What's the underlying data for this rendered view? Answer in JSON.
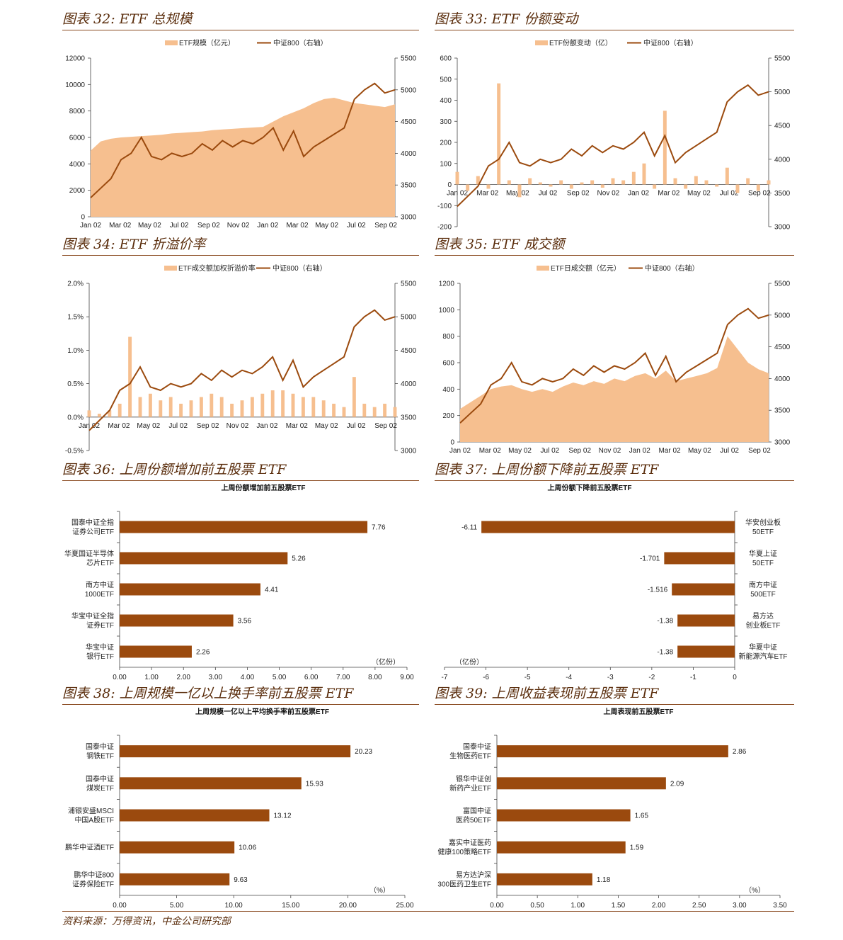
{
  "panels": [
    {
      "title": "图表 32: ETF 总规模"
    },
    {
      "title": "图表 33: ETF 份额变动"
    },
    {
      "title": "图表 34: ETF 折溢价率"
    },
    {
      "title": "图表 35: ETF 成交额"
    },
    {
      "title": "图表 36:  上周份额增加前五股票 ETF"
    },
    {
      "title": "图表 37:  上周份额下降前五股票 ETF"
    },
    {
      "title": "图表 38:  上周规模一亿以上换手率前五股票 ETF"
    },
    {
      "title": "图表 39:  上周收益表现前五股票 ETF"
    }
  ],
  "footer": "资料来源：万得资讯，中金公司研究部",
  "colors": {
    "accent_line": "#9b4a0e",
    "fill": "#f6bf8f",
    "bar": "#9b4a0e",
    "title": "#5a2d0c"
  },
  "chart_data": [
    {
      "type": "area",
      "x_ticks": [
        "Jan 02",
        "Mar 02",
        "May 02",
        "Jul 02",
        "Sep 02",
        "Nov 02",
        "Jan 02",
        "Mar 02",
        "May 02",
        "Jul 02",
        "Sep 02"
      ],
      "series": [
        {
          "name": "ETF规模（亿元）",
          "type": "area",
          "axis": "left",
          "values": [
            5000,
            5700,
            5900,
            6000,
            6050,
            6100,
            6150,
            6200,
            6300,
            6350,
            6400,
            6450,
            6550,
            6600,
            6650,
            6700,
            6750,
            6800,
            7200,
            7600,
            7900,
            8200,
            8600,
            8900,
            9000,
            8800,
            8600,
            8500,
            8400,
            8300,
            8500
          ]
        },
        {
          "name": "中证800（右轴）",
          "type": "line",
          "axis": "right",
          "values": [
            3300,
            3450,
            3600,
            3900,
            4000,
            4250,
            3950,
            3900,
            4000,
            3950,
            4000,
            4150,
            4050,
            4200,
            4100,
            4200,
            4150,
            4250,
            4400,
            4050,
            4350,
            3950,
            4100,
            4200,
            4300,
            4400,
            4850,
            5000,
            5100,
            4950,
            5000
          ]
        }
      ],
      "ylim_left": [
        0,
        12000
      ],
      "ylim_right": [
        3000,
        5500
      ],
      "yticks_left": [
        "0",
        "2000",
        "4000",
        "6000",
        "8000",
        "10000",
        "12000"
      ],
      "yticks_right": [
        "3000",
        "3500",
        "4000",
        "4500",
        "5000",
        "5500"
      ],
      "legend": "top-center"
    },
    {
      "type": "bar",
      "x_ticks": [
        "Jan 02",
        "Mar 02",
        "May 02",
        "Jul 02",
        "Sep 02",
        "Nov 02",
        "Jan 02",
        "Mar 02",
        "May 02",
        "Jul 02",
        "Sep 02"
      ],
      "series": [
        {
          "name": "ETF份额变动（亿）",
          "type": "bar",
          "axis": "left",
          "values": [
            60,
            -30,
            40,
            -20,
            480,
            20,
            -60,
            30,
            10,
            -10,
            20,
            -20,
            10,
            20,
            -15,
            30,
            20,
            60,
            100,
            -20,
            350,
            30,
            -20,
            40,
            20,
            -10,
            80,
            -40,
            30,
            -30,
            20
          ]
        },
        {
          "name": "中证800（右轴）",
          "type": "line",
          "axis": "right",
          "values": [
            3300,
            3450,
            3600,
            3900,
            4000,
            4250,
            3950,
            3900,
            4000,
            3950,
            4000,
            4150,
            4050,
            4200,
            4100,
            4200,
            4150,
            4250,
            4400,
            4050,
            4350,
            3950,
            4100,
            4200,
            4300,
            4400,
            4850,
            5000,
            5100,
            4950,
            5000
          ]
        }
      ],
      "ylim_left": [
        -200,
        600
      ],
      "ylim_right": [
        3000,
        5500
      ],
      "yticks_left": [
        "-200",
        "-100",
        "0",
        "100",
        "200",
        "300",
        "400",
        "500",
        "600"
      ],
      "yticks_right": [
        "3000",
        "3500",
        "4000",
        "4500",
        "5000",
        "5500"
      ],
      "legend": "top-center"
    },
    {
      "type": "bar",
      "x_ticks": [
        "Jan 02",
        "Mar 02",
        "May 02",
        "Jul 02",
        "Sep 02",
        "Nov 02",
        "Jan 02",
        "Mar 02",
        "May 02",
        "Jul 02",
        "Sep 02"
      ],
      "series": [
        {
          "name": "ETF成交额加权折溢价率",
          "type": "bar",
          "axis": "left",
          "values": [
            0.1,
            0.05,
            0.1,
            0.2,
            1.2,
            0.3,
            0.35,
            0.25,
            0.3,
            0.2,
            0.25,
            0.3,
            0.35,
            0.3,
            0.2,
            0.25,
            0.3,
            0.35,
            0.4,
            0.4,
            0.35,
            0.3,
            0.3,
            0.25,
            0.2,
            0.15,
            0.6,
            0.2,
            0.15,
            0.2,
            0.15
          ]
        },
        {
          "name": "中证800（右轴）",
          "type": "line",
          "axis": "right",
          "values": [
            3300,
            3450,
            3600,
            3900,
            4000,
            4250,
            3950,
            3900,
            4000,
            3950,
            4000,
            4150,
            4050,
            4200,
            4100,
            4200,
            4150,
            4250,
            4400,
            4050,
            4350,
            3950,
            4100,
            4200,
            4300,
            4400,
            4850,
            5000,
            5100,
            4950,
            5000
          ]
        }
      ],
      "ylim_left": [
        -0.5,
        2.0
      ],
      "ylim_right": [
        3000,
        5500
      ],
      "yticks_left": [
        "-0.5%",
        "0.0%",
        "0.5%",
        "1.0%",
        "1.5%",
        "2.0%"
      ],
      "yticks_right": [
        "3000",
        "3500",
        "4000",
        "4500",
        "5000",
        "5500"
      ],
      "legend": "top-center"
    },
    {
      "type": "area",
      "x_ticks": [
        "Jan 02",
        "Mar 02",
        "May 02",
        "Jul 02",
        "Sep 02",
        "Nov 02",
        "Jan 02",
        "Mar 02",
        "May 02",
        "Jul 02",
        "Sep 02"
      ],
      "series": [
        {
          "name": "ETF日成交额（亿元）",
          "type": "area",
          "axis": "left",
          "values": [
            250,
            300,
            350,
            400,
            420,
            430,
            400,
            380,
            400,
            380,
            420,
            450,
            430,
            460,
            440,
            480,
            460,
            500,
            520,
            480,
            540,
            460,
            480,
            500,
            520,
            560,
            800,
            700,
            600,
            550,
            520
          ]
        },
        {
          "name": "中证800（右轴）",
          "type": "line",
          "axis": "right",
          "values": [
            3300,
            3450,
            3600,
            3900,
            4000,
            4250,
            3950,
            3900,
            4000,
            3950,
            4000,
            4150,
            4050,
            4200,
            4100,
            4200,
            4150,
            4250,
            4400,
            4050,
            4350,
            3950,
            4100,
            4200,
            4300,
            4400,
            4850,
            5000,
            5100,
            4950,
            5000
          ]
        }
      ],
      "ylim_left": [
        0,
        1200
      ],
      "ylim_right": [
        3000,
        5500
      ],
      "yticks_left": [
        "0",
        "200",
        "400",
        "600",
        "800",
        "1000",
        "1200"
      ],
      "yticks_right": [
        "3000",
        "3500",
        "4000",
        "4500",
        "5000",
        "5500"
      ],
      "legend": "top-center"
    },
    {
      "type": "bar",
      "orientation": "horizontal",
      "title": "上周份额增加前五股票ETF",
      "categories": [
        [
          "国泰中证全指",
          "证券公司ETF"
        ],
        [
          "华夏国证半导体",
          "芯片ETF"
        ],
        [
          "南方中证",
          "1000ETF"
        ],
        [
          "华宝中证全指",
          "证券ETF"
        ],
        [
          "华宝中证",
          "银行ETF"
        ]
      ],
      "values": [
        7.76,
        5.26,
        4.41,
        3.56,
        2.26
      ],
      "value_labels": [
        "7.76",
        "5.26",
        "4.41",
        "3.56",
        "2.26"
      ],
      "xlim": [
        0,
        9
      ],
      "xticks": [
        "0.00",
        "1.00",
        "2.00",
        "3.00",
        "4.00",
        "5.00",
        "6.00",
        "7.00",
        "8.00",
        "9.00"
      ],
      "unit": "（亿份）"
    },
    {
      "type": "bar",
      "orientation": "horizontal",
      "title": "上周份额下降前五股票ETF",
      "categories": [
        [
          "华安创业板",
          "50ETF"
        ],
        [
          "华夏上证",
          "50ETF"
        ],
        [
          "南方中证",
          "500ETF"
        ],
        [
          "易方达",
          "创业板ETF"
        ],
        [
          "华夏中证",
          "新能源汽车ETF"
        ]
      ],
      "values": [
        -6.11,
        -1.701,
        -1.516,
        -1.38,
        -1.38
      ],
      "value_labels": [
        "-6.11",
        "-1.701",
        "-1.516",
        "-1.38",
        "-1.38"
      ],
      "xlim": [
        -7,
        0
      ],
      "xticks": [
        "-7",
        "-6",
        "-5",
        "-4",
        "-3",
        "-2",
        "-1",
        "0"
      ],
      "unit": "（亿份）"
    },
    {
      "type": "bar",
      "orientation": "horizontal",
      "title": "上周规模一亿以上平均换手率前五股票ETF",
      "categories": [
        [
          "国泰中证",
          "钢铁ETF"
        ],
        [
          "国泰中证",
          "煤炭ETF"
        ],
        [
          "浦银安盛MSCI",
          "中国A股ETF"
        ],
        [
          "鹏华中证酒ETF"
        ],
        [
          "鹏华中证800",
          "证券保险ETF"
        ]
      ],
      "values": [
        20.23,
        15.93,
        13.12,
        10.06,
        9.63
      ],
      "value_labels": [
        "20.23",
        "15.93",
        "13.12",
        "10.06",
        "9.63"
      ],
      "xlim": [
        0,
        25
      ],
      "xticks": [
        "0.00",
        "5.00",
        "10.00",
        "15.00",
        "20.00",
        "25.00"
      ],
      "unit": "（%）"
    },
    {
      "type": "bar",
      "orientation": "horizontal",
      "title": "上周表现前五股票ETF",
      "categories": [
        [
          "国泰中证",
          "生物医药ETF"
        ],
        [
          "银华中证创",
          "新药产业ETF"
        ],
        [
          "富国中证",
          "医药50ETF"
        ],
        [
          "嘉实中证医药",
          "健康100策略ETF"
        ],
        [
          "易方达沪深",
          "300医药卫生ETF"
        ]
      ],
      "values": [
        2.86,
        2.09,
        1.65,
        1.59,
        1.18
      ],
      "value_labels": [
        "2.86",
        "2.09",
        "1.65",
        "1.59",
        "1.18"
      ],
      "xlim": [
        0,
        3.5
      ],
      "xticks": [
        "0.00",
        "0.50",
        "1.00",
        "1.50",
        "2.00",
        "2.50",
        "3.00",
        "3.50"
      ],
      "unit": "（%）"
    }
  ]
}
